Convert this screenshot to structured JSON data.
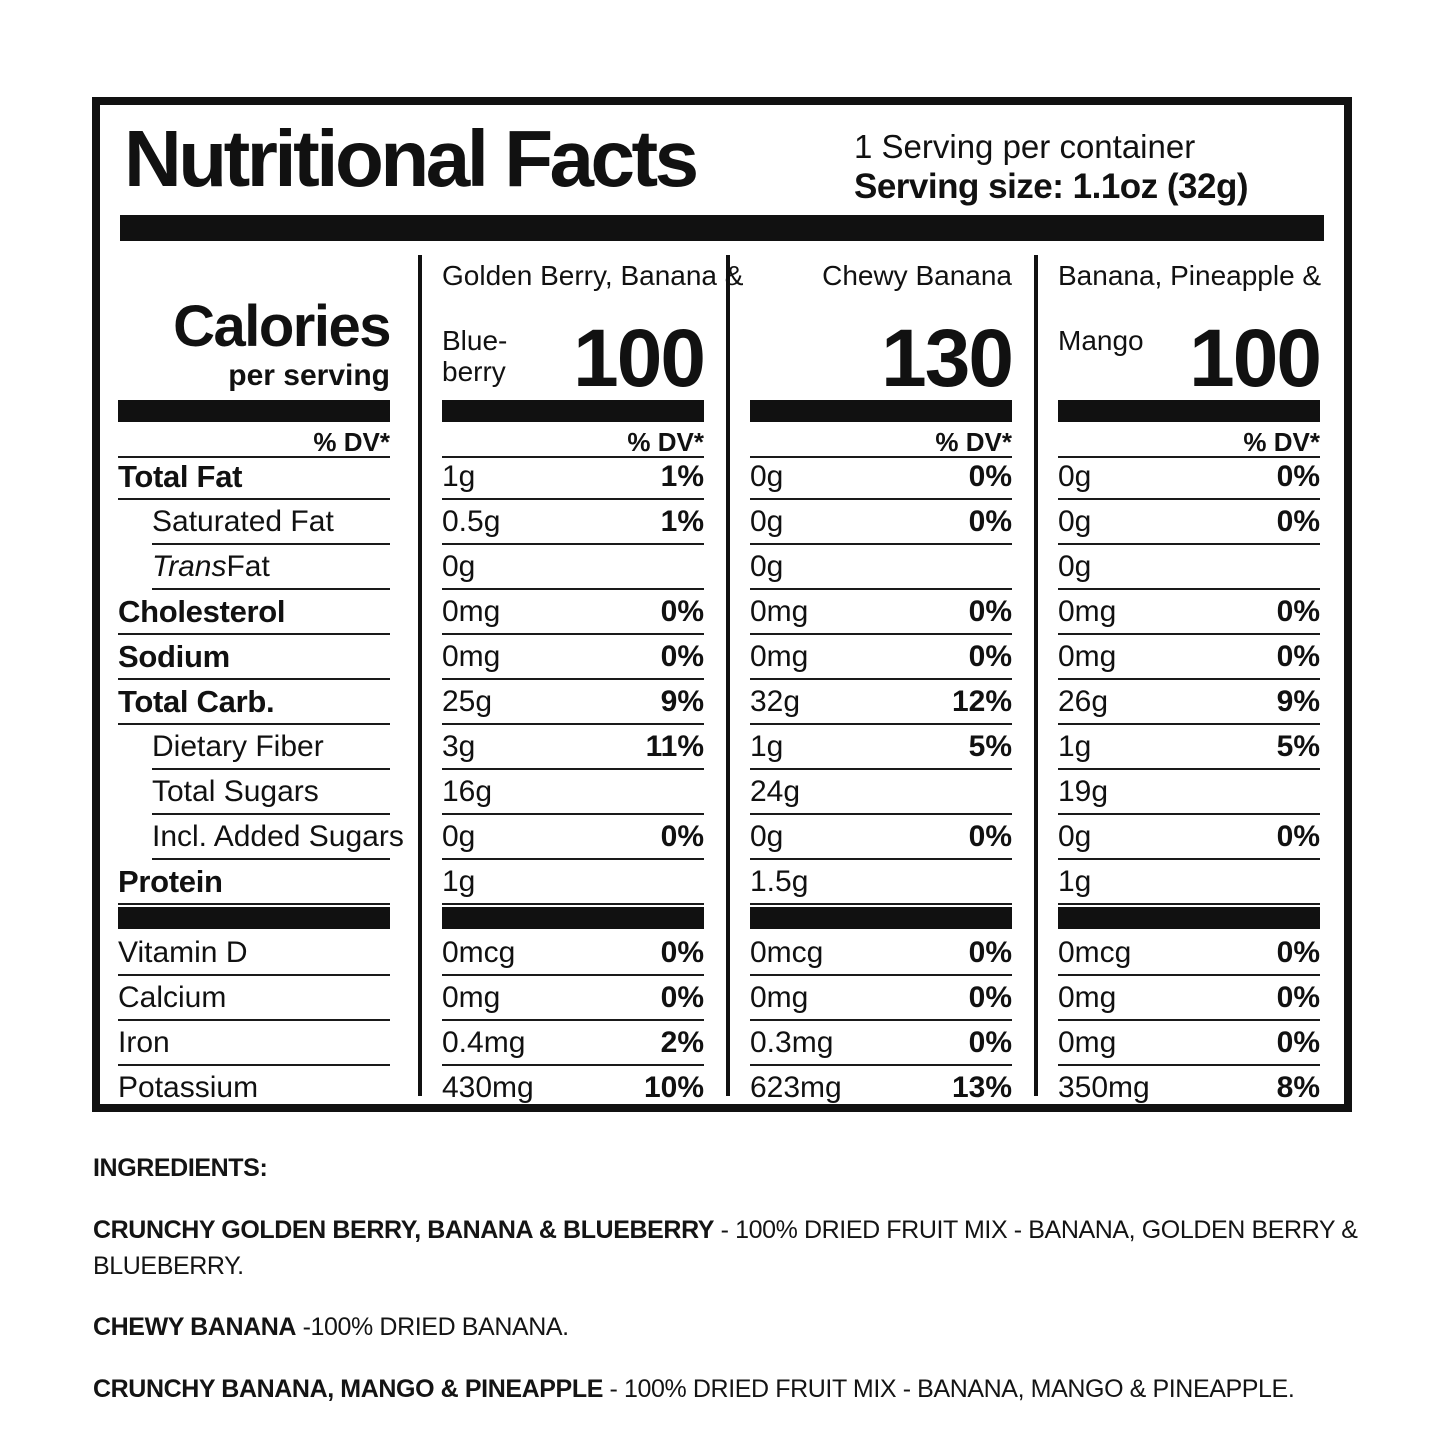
{
  "colors": {
    "ink": "#111111",
    "background": "#ffffff"
  },
  "header": {
    "title": "Nutritional Facts",
    "servings_line": "1 Serving per container",
    "serving_size_line": "Serving size: 1.1oz (32g)"
  },
  "calories_panel": {
    "label": "Calories",
    "sublabel": "per serving",
    "dv_header": "% DV*"
  },
  "products": [
    {
      "name_line1": "Golden Berry, Banana &",
      "name_line2": "Blue-berry",
      "calories": "100"
    },
    {
      "name_line1": "Chewy Banana",
      "name_line2": "",
      "calories": "130"
    },
    {
      "name_line1": "Banana, Pineapple &",
      "name_line2": "Mango",
      "calories": "100"
    }
  ],
  "rows": [
    {
      "label": "Total Fat",
      "emphasis": true,
      "values": [
        {
          "amt": "1g",
          "dv": "1%"
        },
        {
          "amt": "0g",
          "dv": "0%"
        },
        {
          "amt": "0g",
          "dv": "0%"
        }
      ]
    },
    {
      "label": "Saturated Fat",
      "indent": true,
      "values": [
        {
          "amt": "0.5g",
          "dv": "1%"
        },
        {
          "amt": "0g",
          "dv": "0%"
        },
        {
          "amt": "0g",
          "dv": "0%"
        }
      ]
    },
    {
      "label_italic": "Trans",
      "label": " Fat",
      "indent": true,
      "values": [
        {
          "amt": "0g",
          "dv": ""
        },
        {
          "amt": "0g",
          "dv": ""
        },
        {
          "amt": "0g",
          "dv": ""
        }
      ]
    },
    {
      "label": "Cholesterol",
      "emphasis": true,
      "values": [
        {
          "amt": "0mg",
          "dv": "0%"
        },
        {
          "amt": "0mg",
          "dv": "0%"
        },
        {
          "amt": "0mg",
          "dv": "0%"
        }
      ]
    },
    {
      "label": "Sodium",
      "emphasis": true,
      "values": [
        {
          "amt": "0mg",
          "dv": "0%"
        },
        {
          "amt": "0mg",
          "dv": "0%"
        },
        {
          "amt": "0mg",
          "dv": "0%"
        }
      ]
    },
    {
      "label": "Total Carb.",
      "emphasis": true,
      "values": [
        {
          "amt": "25g",
          "dv": "9%"
        },
        {
          "amt": "32g",
          "dv": "12%"
        },
        {
          "amt": "26g",
          "dv": "9%"
        }
      ]
    },
    {
      "label": "Dietary Fiber",
      "indent": true,
      "values": [
        {
          "amt": "3g",
          "dv": "11%"
        },
        {
          "amt": "1g",
          "dv": "5%"
        },
        {
          "amt": "1g",
          "dv": "5%"
        }
      ]
    },
    {
      "label": "Total Sugars",
      "indent": true,
      "values": [
        {
          "amt": "16g",
          "dv": ""
        },
        {
          "amt": "24g",
          "dv": ""
        },
        {
          "amt": "19g",
          "dv": ""
        }
      ]
    },
    {
      "label": "Incl. Added Sugars",
      "indent": true,
      "values": [
        {
          "amt": "0g",
          "dv": "0%"
        },
        {
          "amt": "0g",
          "dv": "0%"
        },
        {
          "amt": "0g",
          "dv": "0%"
        }
      ]
    },
    {
      "label": "Protein",
      "emphasis": true,
      "values": [
        {
          "amt": "1g",
          "dv": ""
        },
        {
          "amt": "1.5g",
          "dv": ""
        },
        {
          "amt": "1g",
          "dv": ""
        }
      ]
    }
  ],
  "micronutrients": [
    {
      "label": "Vitamin D",
      "values": [
        {
          "amt": "0mcg",
          "dv": "0%"
        },
        {
          "amt": "0mcg",
          "dv": "0%"
        },
        {
          "amt": "0mcg",
          "dv": "0%"
        }
      ]
    },
    {
      "label": "Calcium",
      "values": [
        {
          "amt": "0mg",
          "dv": "0%"
        },
        {
          "amt": "0mg",
          "dv": "0%"
        },
        {
          "amt": "0mg",
          "dv": "0%"
        }
      ]
    },
    {
      "label": "Iron",
      "values": [
        {
          "amt": "0.4mg",
          "dv": "2%"
        },
        {
          "amt": "0.3mg",
          "dv": "0%"
        },
        {
          "amt": "0mg",
          "dv": "0%"
        }
      ]
    },
    {
      "label": "Potassium",
      "values": [
        {
          "amt": "430mg",
          "dv": "10%"
        },
        {
          "amt": "623mg",
          "dv": "13%"
        },
        {
          "amt": "350mg",
          "dv": "8%"
        }
      ]
    }
  ],
  "ingredients": {
    "heading": "INGREDIENTS:",
    "items": [
      {
        "name": "CRUNCHY GOLDEN BERRY, BANANA & BLUEBERRY",
        "desc": " - 100% DRIED FRUIT MIX - BANANA, GOLDEN BERRY & BLUEBERRY."
      },
      {
        "name": "CHEWY BANANA",
        "desc": " -100% DRIED BANANA."
      },
      {
        "name": "CRUNCHY BANANA, MANGO & PINEAPPLE",
        "desc": " - 100% DRIED FRUIT MIX - BANANA, MANGO & PINEAPPLE."
      }
    ]
  }
}
